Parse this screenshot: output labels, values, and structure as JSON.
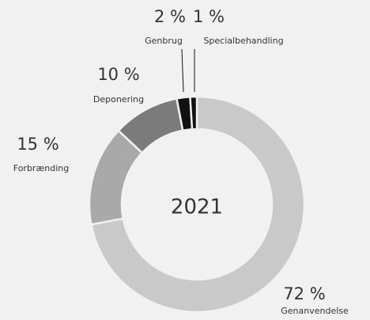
{
  "chart_data": {
    "type": "donut",
    "center_text": "2021",
    "categories": [
      "Genanvendelse",
      "Forbrænding",
      "Deponering",
      "Genbrug",
      "Specialbehandling"
    ],
    "values": [
      72,
      15,
      10,
      2,
      1
    ],
    "value_labels": [
      "72 %",
      "15 %",
      "10 %",
      "2 %",
      "1 %"
    ],
    "colors": [
      "#c9c9c9",
      "#a9a9a9",
      "#7b7b7b",
      "#111111",
      "#111111"
    ]
  }
}
